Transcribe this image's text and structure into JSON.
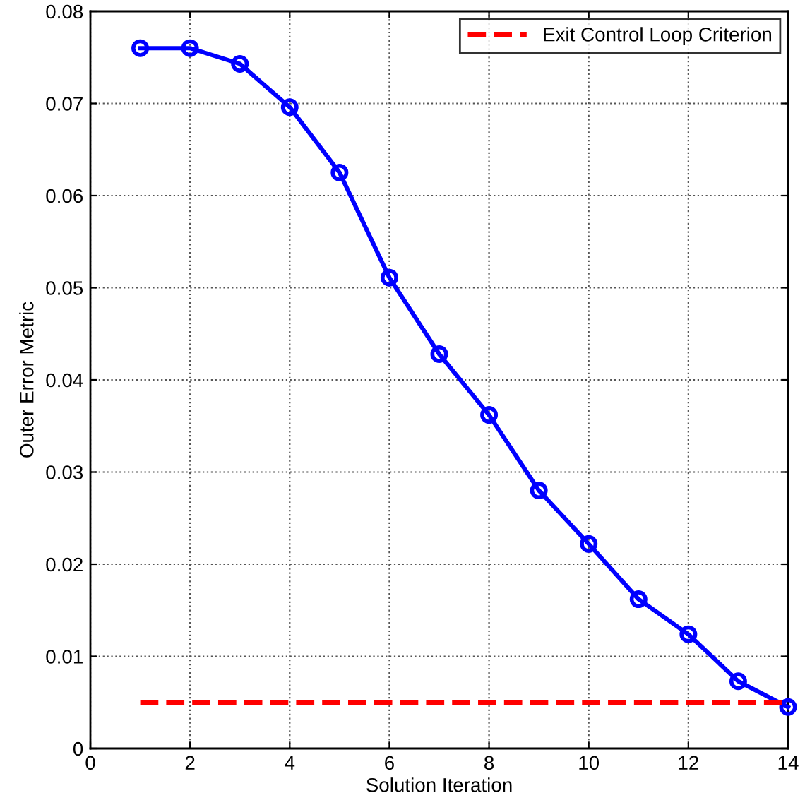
{
  "chart_data": {
    "type": "line",
    "xlabel": "Solution Iteration",
    "ylabel": "Outer Error Metric",
    "x": [
      1,
      2,
      3,
      4,
      5,
      6,
      7,
      8,
      9,
      10,
      11,
      12,
      13,
      14
    ],
    "series": [
      {
        "color": "#0000ff",
        "marker": "circle",
        "line_style": "solid",
        "values": [
          0.076,
          0.076,
          0.0743,
          0.0696,
          0.0625,
          0.0511,
          0.0428,
          0.0362,
          0.028,
          0.0222,
          0.0162,
          0.0124,
          0.0073,
          0.0045
        ]
      },
      {
        "name": "Exit Control Loop Criterion",
        "color": "#ff0000",
        "marker": "none",
        "line_style": "dashed",
        "x": [
          1,
          14
        ],
        "values": [
          0.005,
          0.005
        ]
      }
    ],
    "xlim": [
      0,
      14
    ],
    "ylim": [
      0,
      0.08
    ],
    "xticks": [
      0,
      2,
      4,
      6,
      8,
      10,
      12,
      14
    ],
    "yticks": [
      0,
      0.01,
      0.02,
      0.03,
      0.04,
      0.05,
      0.06,
      0.07,
      0.08
    ],
    "grid": true,
    "legend": "top right"
  }
}
